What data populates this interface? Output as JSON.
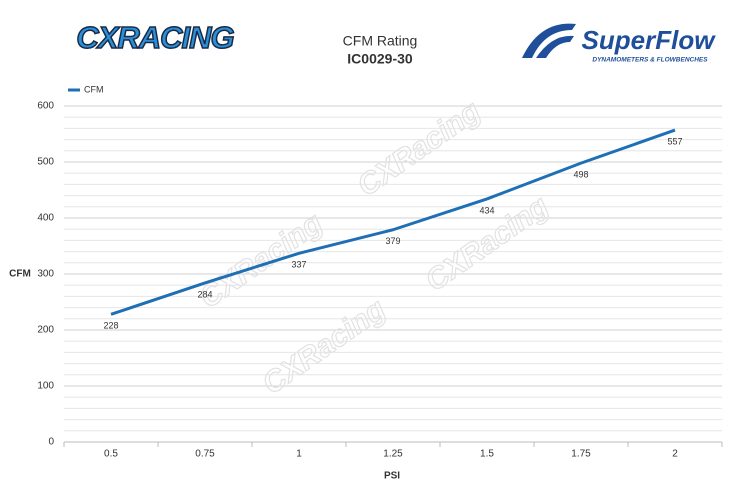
{
  "logos": {
    "left": "CXRACING",
    "right": "SuperFlow",
    "right_tagline": "DYNAMOMETERS & FLOWBENCHES"
  },
  "watermark": "CXRacing",
  "chart_data": {
    "type": "line",
    "title": "CFM Rating",
    "subtitle": "IC0029-30",
    "x_label": "PSI",
    "y_label": "CFM",
    "categories": [
      "0.5",
      "0.75",
      "1",
      "1.25",
      "1.5",
      "1.75",
      "2"
    ],
    "series": [
      {
        "name": "CFM",
        "color": "#1f6fb5",
        "values": [
          228,
          284,
          337,
          379,
          434,
          498,
          557
        ]
      }
    ],
    "ylim": [
      0,
      600
    ],
    "yticks": [
      0,
      100,
      200,
      300,
      400,
      500,
      600
    ],
    "grid": true,
    "legend": "top-left"
  }
}
